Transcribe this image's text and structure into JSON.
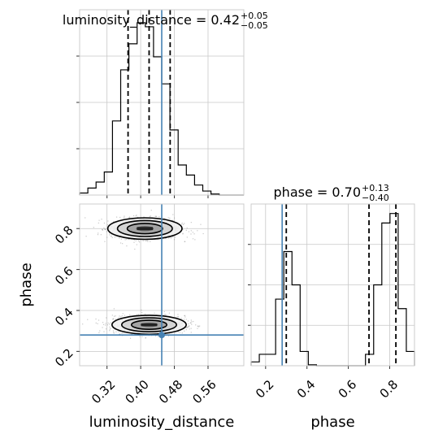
{
  "chart_data": {
    "type": "corner",
    "params": [
      "luminosity_distance",
      "phase"
    ],
    "truth": {
      "luminosity_distance": 0.45,
      "phase": 0.28,
      "color": "#4682b4"
    },
    "titles": {
      "luminosity_distance": {
        "prefix": "luminosity_distance = 0.42",
        "plus": "+0.05",
        "minus": "−0.05"
      },
      "phase": {
        "prefix": "phase = 0.70",
        "plus": "+0.13",
        "minus": "−0.40"
      }
    },
    "xlabels": {
      "luminosity_distance": "luminosity_distance",
      "phase": "phase"
    },
    "ylabels": {
      "phase": "phase"
    },
    "ranges": {
      "luminosity_distance": [
        0.255,
        0.645
      ],
      "phase": [
        0.13,
        0.92
      ]
    },
    "ticks": {
      "luminosity_distance": [
        "0.32",
        "0.40",
        "0.48",
        "0.56"
      ],
      "phase": [
        "0.2",
        "0.4",
        "0.6",
        "0.8"
      ]
    },
    "hist_luminosity_distance": {
      "bin_edges": [
        0.255,
        0.2745,
        0.294,
        0.3135,
        0.333,
        0.3525,
        0.372,
        0.3915,
        0.411,
        0.4305,
        0.45,
        0.4695,
        0.489,
        0.5085,
        0.528,
        0.5475,
        0.567,
        0.5865,
        0.606,
        0.6255,
        0.645
      ],
      "counts": [
        2,
        7,
        13,
        23,
        74,
        125,
        151,
        172,
        168,
        138,
        111,
        65,
        30,
        20,
        10,
        4,
        1,
        0,
        0,
        0
      ],
      "ymax": 185,
      "quantiles": [
        0.37,
        0.42,
        0.47
      ]
    },
    "hist_phase": {
      "bin_edges": [
        0.13,
        0.1695,
        0.209,
        0.2485,
        0.288,
        0.3275,
        0.367,
        0.4065,
        0.446,
        0.4855,
        0.525,
        0.5645,
        0.604,
        0.6435,
        0.683,
        0.7225,
        0.762,
        0.8015,
        0.841,
        0.8805,
        0.92
      ],
      "counts": [
        4,
        12,
        12,
        70,
        120,
        85,
        15,
        1,
        0,
        0,
        0,
        0,
        0,
        0,
        12,
        85,
        150,
        160,
        60,
        15
      ],
      "ymax": 170,
      "quantiles": [
        0.3,
        0.7,
        0.83
      ]
    },
    "density_2d": {
      "modes": [
        {
          "x": 0.41,
          "y": 0.8,
          "sx": 0.042,
          "sy": 0.025
        },
        {
          "x": 0.42,
          "y": 0.33,
          "sx": 0.042,
          "sy": 0.022
        }
      ],
      "n_points": 2400
    }
  }
}
